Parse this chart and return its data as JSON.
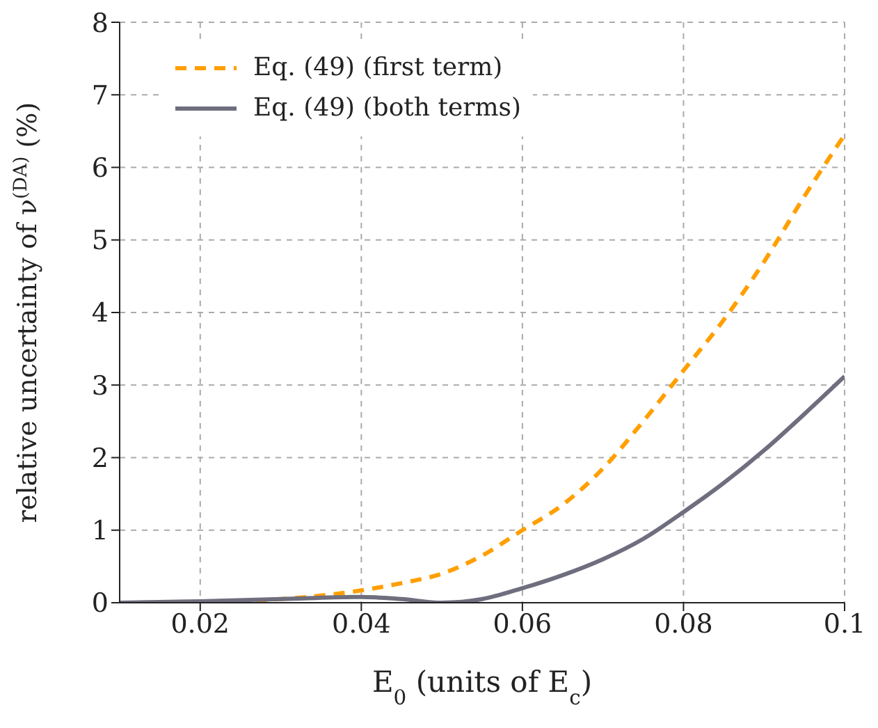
{
  "chart_data": {
    "type": "line",
    "xlabel": "E$_{0}$ (units of E$_{c}$)",
    "ylabel": "relative uncertainty of ν$^{(DA)}$ (%)",
    "x": [
      0.01,
      0.02,
      0.03,
      0.04,
      0.045,
      0.05,
      0.055,
      0.06,
      0.065,
      0.07,
      0.075,
      0.08,
      0.085,
      0.09,
      0.095,
      0.1
    ],
    "series": [
      {
        "name": "Eq. (49) (first term)",
        "color": "#ff9f00",
        "line_style": "dashed",
        "values": [
          0,
          0.01,
          0.05,
          0.17,
          0.27,
          0.4,
          0.65,
          1.0,
          1.35,
          1.85,
          2.5,
          3.2,
          3.9,
          4.7,
          5.6,
          6.45
        ]
      },
      {
        "name": "Eq. (49) (both terms)",
        "color": "#6e6e7e",
        "line_style": "solid",
        "values": [
          0,
          0.02,
          0.05,
          0.08,
          0.05,
          0,
          0.05,
          0.2,
          0.38,
          0.6,
          0.88,
          1.25,
          1.65,
          2.1,
          2.6,
          3.12
        ]
      }
    ],
    "xlim": [
      0.01,
      0.1
    ],
    "xticks": [
      0.02,
      0.04,
      0.06,
      0.08,
      0.1
    ],
    "ylim": [
      0,
      8
    ],
    "yticks": [
      0,
      1,
      2,
      3,
      4,
      5,
      6,
      7,
      8
    ],
    "grid": true,
    "legend": "top left",
    "marker": "none"
  }
}
